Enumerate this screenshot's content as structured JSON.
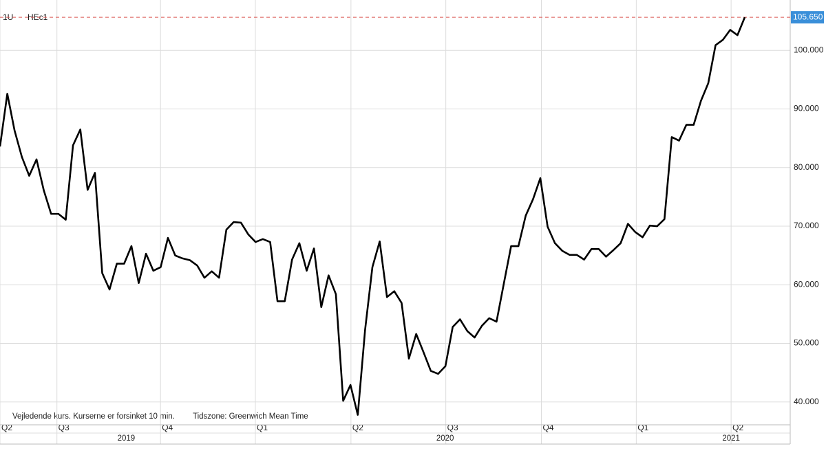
{
  "chart_data": {
    "type": "line",
    "instrument": [
      "1U",
      "HEc1"
    ],
    "footnote": [
      "Vejledende kurs. Kurserne er forsinket 10 min.",
      "Tidszone: Greenwich Mean Time"
    ],
    "values": [
      83.6,
      92.6,
      86.3,
      81.8,
      78.6,
      81.4,
      76.1,
      72.1,
      72.1,
      71.1,
      83.8,
      86.5,
      76.2,
      79.1,
      62.0,
      59.2,
      63.6,
      63.6,
      66.6,
      60.3,
      65.3,
      62.4,
      63.0,
      68.0,
      65.0,
      64.5,
      64.2,
      63.3,
      61.2,
      62.3,
      61.2,
      69.4,
      70.7,
      70.6,
      68.6,
      67.3,
      67.8,
      67.3,
      57.2,
      57.2,
      64.3,
      67.1,
      62.4,
      66.2,
      56.2,
      61.6,
      58.4,
      40.2,
      42.9,
      37.8,
      52.3,
      63.0,
      67.4,
      57.9,
      58.9,
      56.9,
      47.4,
      51.6,
      48.5,
      45.3,
      44.8,
      46.1,
      52.8,
      54.1,
      52.1,
      51.0,
      53.0,
      54.3,
      53.7,
      60.2,
      66.6,
      66.6,
      71.8,
      74.6,
      78.2,
      69.9,
      67.1,
      65.8,
      65.1,
      65.1,
      64.3,
      66.1,
      66.1,
      64.8,
      65.9,
      67.1,
      70.4,
      69.0,
      68.1,
      70.1,
      70.0,
      71.2,
      85.2,
      84.6,
      87.3,
      87.3,
      91.4,
      94.4,
      100.9,
      101.8,
      103.5,
      102.6,
      105.65
    ],
    "color": "#000000",
    "last_price": {
      "value": 105.65,
      "label": "105.650"
    },
    "xlim": [
      0,
      108.3
    ],
    "xticks": [
      {
        "value": 0,
        "label": "Q2"
      },
      {
        "value": 7.8,
        "label": "Q3"
      },
      {
        "value": 22,
        "label": "Q4"
      },
      {
        "value": 35,
        "label": "Q1"
      },
      {
        "value": 48.1,
        "label": "Q2"
      },
      {
        "value": 61.1,
        "label": "Q3"
      },
      {
        "value": 74.2,
        "label": "Q4"
      },
      {
        "value": 87.2,
        "label": "Q1"
      },
      {
        "value": 100.2,
        "label": "Q2"
      }
    ],
    "year_ticks": [
      {
        "value": 17.3,
        "label": "2019"
      },
      {
        "value": 61,
        "label": "2020"
      },
      {
        "value": 100.2,
        "label": "2021"
      }
    ],
    "ylim": [
      36.1,
      108.6
    ],
    "yticks": [
      {
        "value": 40,
        "label": "40.000"
      },
      {
        "value": 50,
        "label": "50.000"
      },
      {
        "value": 60,
        "label": "60.000"
      },
      {
        "value": 70,
        "label": "70.000"
      },
      {
        "value": 80,
        "label": "80.000"
      },
      {
        "value": 90,
        "label": "90.000"
      },
      {
        "value": 100,
        "label": "100.000"
      }
    ],
    "grid": true
  }
}
